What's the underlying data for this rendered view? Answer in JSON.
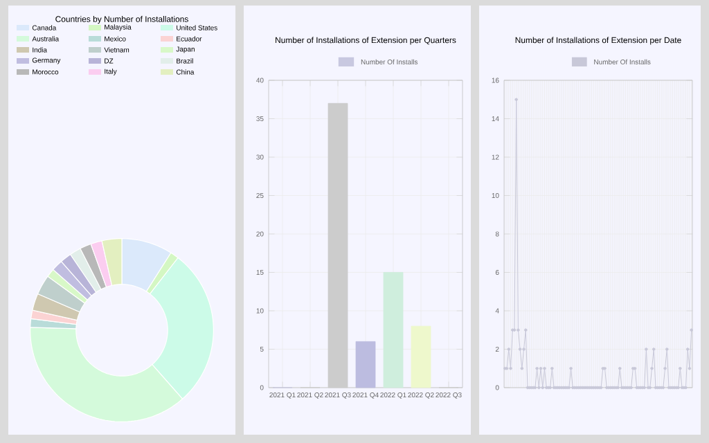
{
  "chart_data": [
    {
      "type": "donut",
      "title": "Countries by Number of Installations",
      "legend": "top",
      "categories": [
        "Canada",
        "Malaysia",
        "United States",
        "Australia",
        "Mexico",
        "Ecuador",
        "India",
        "Vietnam",
        "Japan",
        "Germany",
        "DZ",
        "Brazil",
        "Morocco",
        "Italy",
        "China"
      ],
      "values": [
        9,
        1.5,
        28,
        37,
        1.5,
        1.5,
        3,
        3.5,
        1.5,
        2,
        2,
        2,
        2,
        2,
        3.5
      ],
      "colors": [
        "#dbe9fb",
        "#d4f7c3",
        "#ccfbe8",
        "#d4fadb",
        "#b9dcd9",
        "#fbd3d3",
        "#cfc8b0",
        "#bfcfcc",
        "#d8f8c8",
        "#c0bde0",
        "#b8b4d8",
        "#e2eeea",
        "#b8b8b8",
        "#fbcdf0",
        "#e3efc0"
      ]
    },
    {
      "type": "bar",
      "title": "Number of Installations of Extension per Quarters",
      "legend": "top",
      "grid": true,
      "categories": [
        "2021 Q1",
        "2021 Q2",
        "2021 Q3",
        "2021 Q4",
        "2022 Q1",
        "2022 Q2",
        "2022 Q3"
      ],
      "series": [
        {
          "name": "Number Of Installs",
          "values": [
            0,
            0,
            37,
            6,
            15,
            8,
            0
          ],
          "colors": [
            "#c8c8e0",
            "#cccccc",
            "#cccccc",
            "#bcbce0",
            "#cfeedd",
            "#eef8cc",
            "#cccccc"
          ]
        }
      ],
      "ylim": [
        0,
        40
      ],
      "yticks": [
        0,
        5,
        10,
        15,
        20,
        25,
        30,
        35,
        40
      ]
    },
    {
      "type": "line",
      "title": "Number of Installations of Extension per Date",
      "legend": "top",
      "grid": true,
      "marker": "circle",
      "categories": [
        null,
        null,
        null,
        null,
        null,
        null,
        null,
        null,
        null,
        null,
        null,
        null,
        null,
        null,
        null,
        null,
        null,
        null,
        null,
        null,
        null,
        null,
        null,
        null,
        null,
        null,
        null,
        null,
        null,
        null,
        null,
        null,
        null,
        null,
        null,
        null,
        null,
        null,
        null,
        null,
        null,
        null,
        null,
        null,
        null,
        null,
        null,
        null,
        null,
        null,
        null,
        null,
        null,
        null,
        null,
        null,
        null,
        null,
        null,
        null,
        null,
        null,
        null,
        null,
        null,
        null,
        null,
        null,
        null,
        null,
        null,
        null,
        null,
        null,
        null,
        null,
        null,
        null,
        null,
        null,
        null,
        null,
        null,
        null,
        null,
        null,
        null,
        null,
        null,
        null,
        null,
        null,
        null,
        null,
        null,
        null,
        null,
        null,
        null,
        null
      ],
      "series": [
        {
          "name": "Number Of Installs",
          "color": "#c8c8d8",
          "values": [
            1,
            1,
            2,
            1,
            3,
            3,
            15,
            3,
            2,
            1,
            2,
            3,
            0,
            0,
            0,
            0,
            0,
            1,
            0,
            1,
            0,
            1,
            0,
            0,
            0,
            1,
            0,
            0,
            0,
            0,
            0,
            0,
            0,
            0,
            0,
            1,
            0,
            0,
            0,
            0,
            0,
            0,
            0,
            0,
            0,
            0,
            0,
            0,
            0,
            0,
            0,
            0,
            1,
            1,
            0,
            0,
            0,
            0,
            0,
            0,
            0,
            1,
            0,
            0,
            0,
            0,
            0,
            0,
            1,
            1,
            0,
            0,
            0,
            0,
            0,
            2,
            0,
            0,
            1,
            2,
            0,
            0,
            0,
            0,
            0,
            1,
            2,
            0,
            0,
            0,
            0,
            0,
            0,
            1,
            0,
            0,
            0,
            2,
            1,
            3
          ]
        }
      ],
      "ylim": [
        0,
        16
      ],
      "yticks": [
        0,
        2,
        4,
        6,
        8,
        10,
        12,
        14,
        16
      ]
    }
  ]
}
